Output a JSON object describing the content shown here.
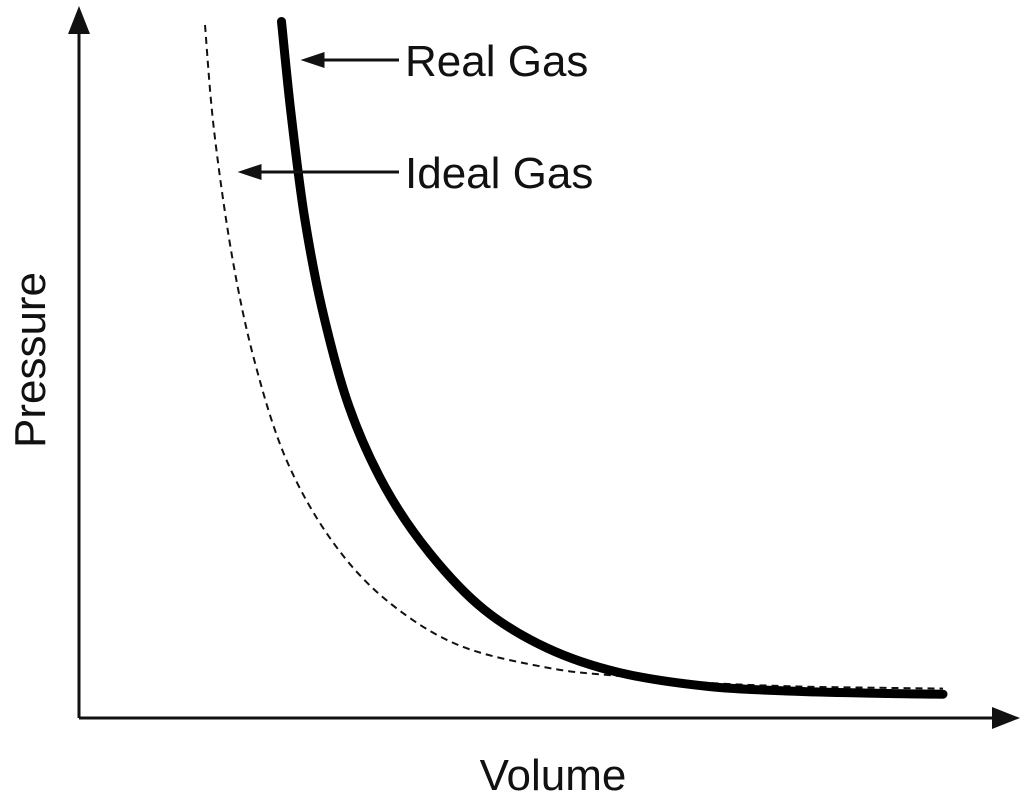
{
  "chart_data": {
    "type": "line",
    "title": "",
    "xlabel": "Volume",
    "ylabel": "Pressure",
    "grid": false,
    "xlim": [
      0,
      10
    ],
    "ylim": [
      0,
      10
    ],
    "series": [
      {
        "name": "Real Gas",
        "style": "solid",
        "color": "#000000",
        "x": [
          2.25,
          2.35,
          2.5,
          2.7,
          3.0,
          3.4,
          3.9,
          4.5,
          5.2,
          6.0,
          7.0,
          8.0,
          9.0,
          9.6
        ],
        "y": [
          9.95,
          8.7,
          7.2,
          5.85,
          4.45,
          3.3,
          2.35,
          1.55,
          1.0,
          0.65,
          0.45,
          0.38,
          0.35,
          0.34
        ]
      },
      {
        "name": "Ideal Gas",
        "style": "dashed",
        "color": "#111111",
        "x": [
          1.4,
          1.5,
          1.7,
          1.95,
          2.3,
          2.8,
          3.4,
          4.2,
          5.2,
          6.0,
          7.0,
          8.0,
          9.0,
          9.6
        ],
        "y": [
          9.9,
          8.4,
          6.6,
          5.1,
          3.7,
          2.55,
          1.7,
          1.05,
          0.72,
          0.6,
          0.5,
          0.45,
          0.43,
          0.42
        ]
      }
    ],
    "annotations": [
      {
        "text": "Real Gas",
        "target_x": 2.35,
        "target_y": 9.4,
        "label_x": 3.6,
        "label_y": 9.4
      },
      {
        "text": "Ideal Gas",
        "target_x": 1.65,
        "target_y": 7.8,
        "label_x": 3.6,
        "label_y": 7.8
      }
    ]
  }
}
